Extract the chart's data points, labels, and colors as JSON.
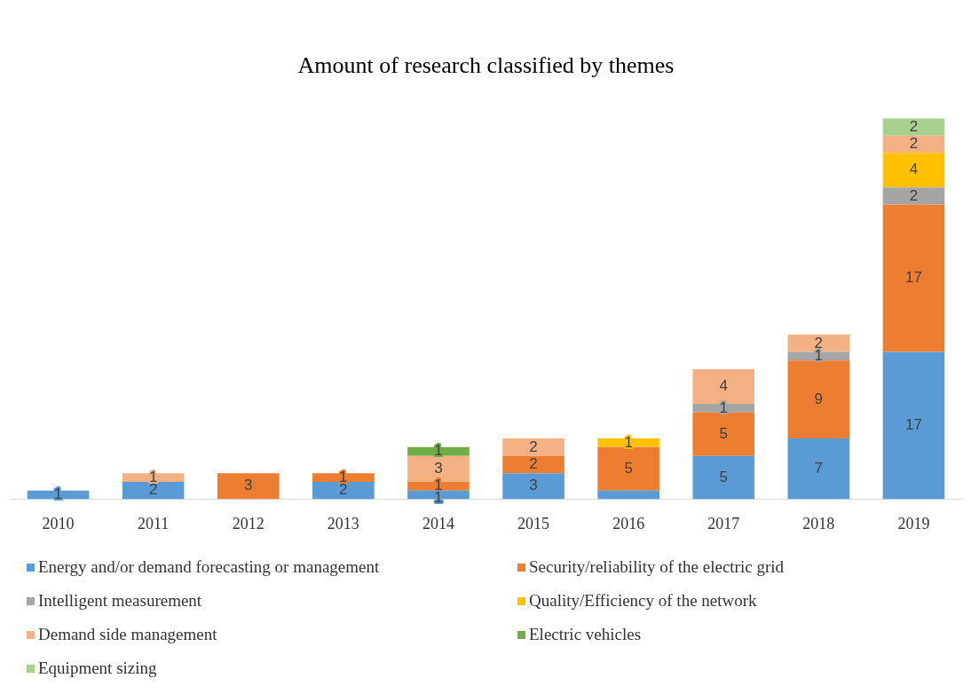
{
  "chart_data": {
    "type": "bar",
    "title": "Amount of research classified by themes",
    "categories": [
      "2010",
      "2011",
      "2012",
      "2013",
      "2014",
      "2015",
      "2016",
      "2017",
      "2018",
      "2019"
    ],
    "stacked": true,
    "grid": false,
    "legend": "bottom",
    "series": [
      {
        "name": "Energy and/or demand forecasting or management",
        "color": "#5b9bd5",
        "values": [
          1,
          2,
          null,
          2,
          1,
          3,
          1,
          5,
          7,
          17
        ],
        "value_labels": [
          "1",
          "2",
          null,
          "2",
          "1",
          "3",
          null,
          "5",
          "7",
          "17"
        ]
      },
      {
        "name": "Security/reliability of the electric grid",
        "color": "#ed7d31",
        "values": [
          null,
          null,
          3,
          1,
          1,
          2,
          5,
          5,
          9,
          17
        ],
        "value_labels": [
          null,
          null,
          "3",
          "1",
          "1",
          "2",
          "5",
          "5",
          "9",
          "17"
        ]
      },
      {
        "name": "Intelligent measurement",
        "color": "#a5a5a5",
        "values": [
          null,
          null,
          null,
          null,
          null,
          null,
          null,
          1,
          1,
          2
        ],
        "value_labels": [
          null,
          null,
          null,
          null,
          null,
          null,
          null,
          "1",
          "1",
          "2"
        ]
      },
      {
        "name": "Quality/Efficiency of the network",
        "color": "#ffc000",
        "values": [
          null,
          null,
          null,
          null,
          null,
          null,
          1,
          null,
          null,
          4
        ],
        "value_labels": [
          null,
          null,
          null,
          null,
          null,
          null,
          "1",
          null,
          null,
          "4"
        ]
      },
      {
        "name": "Demand side management",
        "color": "#f4b183",
        "values": [
          null,
          1,
          null,
          null,
          3,
          2,
          null,
          4,
          2,
          2
        ],
        "value_labels": [
          null,
          "1",
          null,
          null,
          "3",
          "2",
          null,
          "4",
          "2",
          "2"
        ]
      },
      {
        "name": "Electric vehicles",
        "color": "#70ad47",
        "values": [
          null,
          null,
          null,
          null,
          1,
          null,
          null,
          null,
          null,
          null
        ],
        "value_labels": [
          null,
          null,
          null,
          null,
          "1",
          null,
          null,
          null,
          null,
          null
        ]
      },
      {
        "name": "Equipment sizing",
        "color": "#a9d18e",
        "values": [
          null,
          null,
          null,
          null,
          null,
          null,
          null,
          null,
          null,
          2
        ],
        "value_labels": [
          null,
          null,
          null,
          null,
          null,
          null,
          null,
          null,
          null,
          "2"
        ]
      }
    ]
  }
}
